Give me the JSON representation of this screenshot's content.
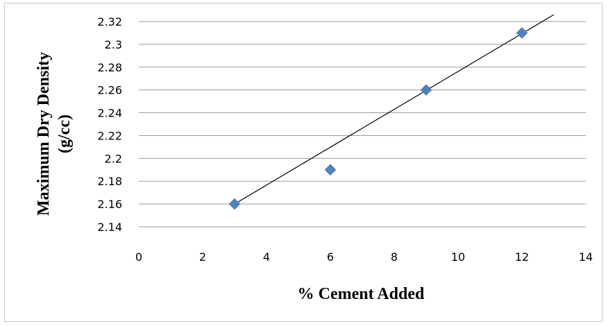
{
  "chart_data": {
    "type": "scatter",
    "xlabel": "% Cement Added",
    "ylabel_lines": [
      "Maximum Dry Density",
      "(g/cc)"
    ],
    "xlim": [
      0,
      14
    ],
    "ylim": [
      2.14,
      2.32
    ],
    "xticks": [
      0,
      2,
      4,
      6,
      8,
      10,
      12,
      14
    ],
    "yticks": [
      2.14,
      2.16,
      2.18,
      2.2,
      2.22,
      2.24,
      2.26,
      2.28,
      2.3,
      2.32
    ],
    "ytick_labels": [
      "2.14",
      "2.16",
      "2.18",
      "2.2",
      "2.22",
      "2.24",
      "2.26",
      "2.28",
      "2.3",
      "2.32"
    ],
    "grid": "horizontal",
    "points": [
      {
        "x": 3,
        "y": 2.16
      },
      {
        "x": 6,
        "y": 2.19
      },
      {
        "x": 9,
        "y": 2.26
      },
      {
        "x": 12,
        "y": 2.31
      }
    ],
    "trendline": {
      "x": [
        3,
        13
      ],
      "y": [
        2.16,
        2.326
      ]
    },
    "marker_color": "#4f81bd",
    "line_color": "#000000",
    "grid_color": "#9a9a9a"
  }
}
